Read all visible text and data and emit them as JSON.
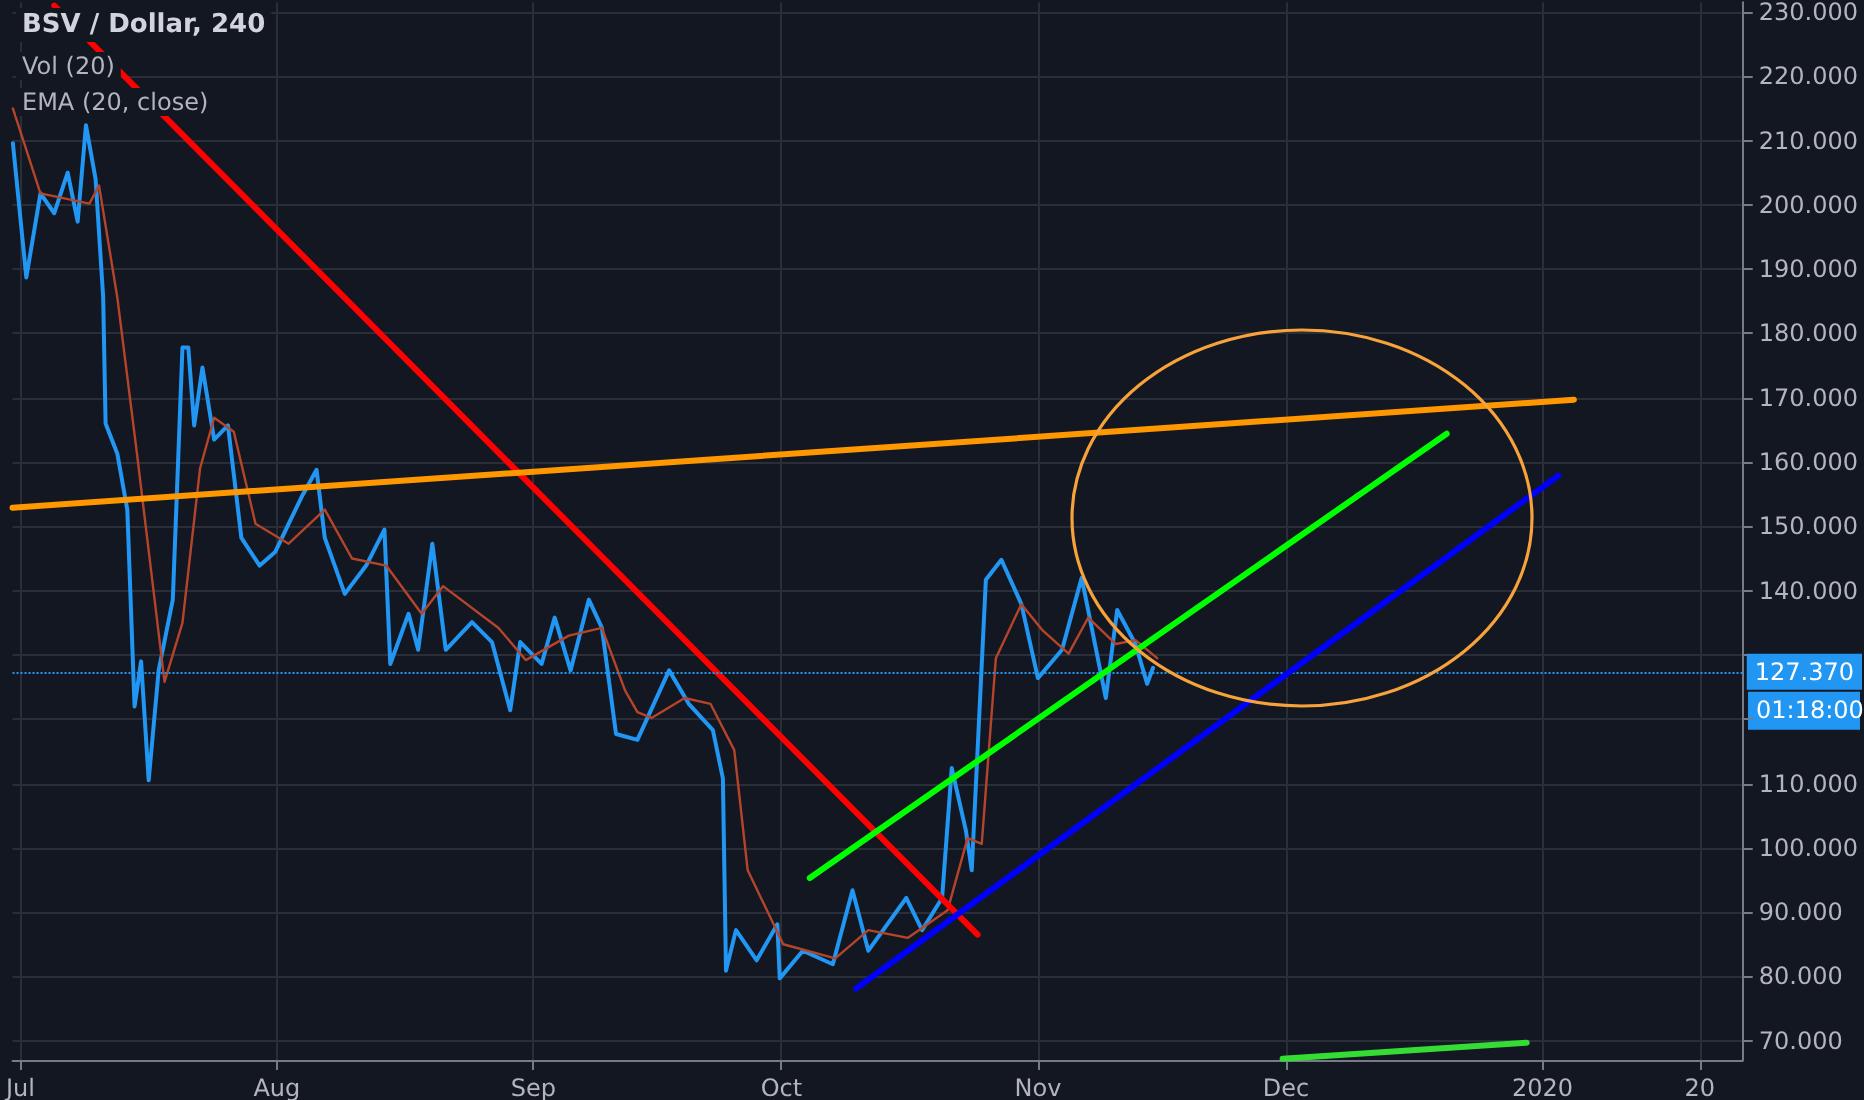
{
  "chart_data": {
    "type": "line",
    "title": "BSV / Dollar, 240",
    "annotations": [
      "Vol (20)",
      "EMA (20, close)",
      "01:18:00"
    ],
    "xlim": [
      "2019-06-30T01:00",
      "2020-01-25T05:00"
    ],
    "xticks": [
      {
        "value": "2019-07-01",
        "label": "Jul"
      },
      {
        "value": "2019-08-01",
        "label": "Aug"
      },
      {
        "value": "2019-09-01",
        "label": "Sep"
      },
      {
        "value": "2019-10-01",
        "label": "Oct"
      },
      {
        "value": "2019-11-01",
        "label": "Nov"
      },
      {
        "value": "2019-12-01",
        "label": "Dec"
      },
      {
        "value": "2020-01-01",
        "label": "2020"
      },
      {
        "value": "2020-01-20",
        "label": "20"
      }
    ],
    "ylim": [
      67,
      231.5
    ],
    "yticks": [
      {
        "value": 70,
        "label": "70.000"
      },
      {
        "value": 80,
        "label": "80.000"
      },
      {
        "value": 90,
        "label": "90.000"
      },
      {
        "value": 100,
        "label": "100.000"
      },
      {
        "value": 110,
        "label": "110.000"
      },
      {
        "value": 120,
        "label": null
      },
      {
        "value": 130,
        "label": null
      },
      {
        "value": 140,
        "label": "140.000"
      },
      {
        "value": 150,
        "label": "150.000"
      },
      {
        "value": 160,
        "label": "160.000"
      },
      {
        "value": 170,
        "label": "170.000"
      },
      {
        "value": 180,
        "label": "180.000"
      },
      {
        "value": 190,
        "label": "190.000"
      },
      {
        "value": 200,
        "label": "200.000"
      },
      {
        "value": 210,
        "label": "210.000"
      },
      {
        "value": 220,
        "label": "220.000"
      },
      {
        "value": 230,
        "label": "230.000"
      }
    ],
    "grid": true,
    "marker": "none",
    "ref_lines": [
      {
        "axis": "y",
        "value": 127.37,
        "label": "127.370",
        "color": "#2196f3",
        "line_style": "dotted"
      }
    ],
    "series": [
      {
        "color": "#2196f3",
        "x": [
          "2019-06-30T02:00",
          "2019-07-01T17:00",
          "2019-07-03T10:00",
          "2019-07-05T02:00",
          "2019-07-06T17:00",
          "2019-07-07T22:00",
          "2019-07-08T22:00",
          "2019-07-10T02:00",
          "2019-07-11T00:00",
          "2019-07-11T07:00",
          "2019-07-12T17:00",
          "2019-07-13T22:00",
          "2019-07-14T19:00",
          "2019-07-15T14:00",
          "2019-07-16T12:00",
          "2019-07-17T17:00",
          "2019-07-19T10:00",
          "2019-07-20T14:00",
          "2019-07-21T07:00",
          "2019-07-22T00:00",
          "2019-07-23T00:00",
          "2019-07-24T10:00",
          "2019-07-26T02:00",
          "2019-07-27T17:00",
          "2019-07-29T22:00",
          "2019-07-31T19:00",
          "2019-08-02T10:00",
          "2019-08-04T02:00",
          "2019-08-05T19:00",
          "2019-08-06T19:00",
          "2019-08-09T05:00",
          "2019-08-11T19:00",
          "2019-08-14T00:00",
          "2019-08-14T17:00",
          "2019-08-16T22:00",
          "2019-08-18T02:00",
          "2019-08-19T19:00",
          "2019-08-21T10:00",
          "2019-08-24T14:00",
          "2019-08-27T00:00",
          "2019-08-29T05:00",
          "2019-08-30T10:00",
          "2019-09-02T00:00",
          "2019-09-03T14:00",
          "2019-09-05T12:00",
          "2019-09-07T17:00",
          "2019-09-09T07:00",
          "2019-09-11T00:00",
          "2019-09-13T14:00",
          "2019-09-17T10:00",
          "2019-09-19T19:00",
          "2019-09-22T17:00",
          "2019-09-23T22:00",
          "2019-09-24T07:00",
          "2019-09-25T12:00",
          "2019-09-28T00:00",
          "2019-09-30T12:00",
          "2019-09-30T19:00",
          "2019-10-03T14:00",
          "2019-10-07T05:00",
          "2019-10-09T14:00",
          "2019-10-11T12:00",
          "2019-10-16T02:00",
          "2019-10-18T00:00",
          "2019-10-20T10:00",
          "2019-10-21T14:00",
          "2019-10-23T07:00",
          "2019-10-24T00:00",
          "2019-10-25T17:00",
          "2019-10-27T14:00",
          "2019-10-30T00:00",
          "2019-11-01T00:00",
          "2019-11-03T22:00",
          "2019-11-06T07:00",
          "2019-11-09T05:00",
          "2019-11-10T14:00",
          "2019-11-12T19:00",
          "2019-11-14T05:00",
          "2019-11-14T22:00"
        ],
        "values": [
          209.6,
          188.7,
          201.8,
          198.7,
          205,
          197.4,
          212.4,
          204,
          185.6,
          166,
          161.3,
          152.6,
          122,
          129,
          110.5,
          127.6,
          138.6,
          177.8,
          177.8,
          165.7,
          174.7,
          163.5,
          165.7,
          148.2,
          143.9,
          146,
          150.4,
          154.8,
          158.8,
          148.2,
          139.5,
          143.9,
          149.5,
          128.6,
          136.4,
          130.8,
          147.3,
          130.8,
          135.1,
          132,
          121.4,
          132,
          128.6,
          135.8,
          127.6,
          138.6,
          134.2,
          117.7,
          116.8,
          127.6,
          122.4,
          118.3,
          110.8,
          80.9,
          87.2,
          82.5,
          88.1,
          79.7,
          84,
          81.9,
          93.4,
          84,
          92.2,
          87.2,
          92.2,
          112.4,
          102.7,
          96.5,
          141.7,
          144.8,
          137.9,
          126.4,
          130.8,
          142,
          123.3,
          137,
          131.7,
          125.5,
          128
        ]
      },
      {
        "color": "#b5452a",
        "x": [
          "2019-06-30T02:00",
          "2019-07-03T10:00",
          "2019-07-09T08:00",
          "2019-07-10T12:00",
          "2019-07-12T17:00",
          "2019-07-15T02:00",
          "2019-07-18T10:00",
          "2019-07-20T14:00",
          "2019-07-22T17:00",
          "2019-07-24T10:00",
          "2019-07-26T19:00",
          "2019-07-29T10:00",
          "2019-08-02T10:00",
          "2019-08-06T19:00",
          "2019-08-10T02:00",
          "2019-08-14T05:00",
          "2019-08-18T12:00",
          "2019-08-21T02:00",
          "2019-08-27T19:00",
          "2019-08-31T02:00",
          "2019-09-05T07:00",
          "2019-09-09T07:00",
          "2019-09-12T02:00",
          "2019-09-13T14:00",
          "2019-09-15T07:00",
          "2019-09-19T07:00",
          "2019-09-22T10:00",
          "2019-09-25T07:00",
          "2019-09-26T22:00",
          "2019-10-01T05:00",
          "2019-10-07T12:00",
          "2019-10-11T12:00",
          "2019-10-16T07:00",
          "2019-10-21T02:00",
          "2019-10-23T12:00",
          "2019-10-25T05:00",
          "2019-10-26T22:00",
          "2019-10-30T00:00",
          "2019-11-01T12:00",
          "2019-11-04T17:00",
          "2019-11-07T02:00",
          "2019-11-10T10:00",
          "2019-11-12T19:00",
          "2019-11-15T10:00"
        ],
        "values": [
          215,
          201.8,
          200.2,
          203,
          185.6,
          161.3,
          125.8,
          135,
          159,
          166.9,
          164.7,
          150.4,
          147.3,
          152.6,
          145,
          143.9,
          136.4,
          140.7,
          134.2,
          129.2,
          133,
          134.2,
          124.5,
          121.1,
          120.2,
          123.3,
          122.4,
          115.2,
          96.5,
          85,
          82.8,
          87.2,
          86,
          90.3,
          101.5,
          100.6,
          129.5,
          137.9,
          133.9,
          130.2,
          135.8,
          131.7,
          132.3,
          129.5
        ]
      },
      {
        "color": "#ff0000",
        "x": [
          "2019-07-05T02:00",
          "2019-10-24T17:00"
        ],
        "values": [
          231,
          86.5
        ]
      },
      {
        "color": "#ff9800",
        "x": [
          "2019-06-30T01:00",
          "2020-01-04T19:00"
        ],
        "values": [
          152.9,
          169.7
        ]
      },
      {
        "color": "#00ff00",
        "x": [
          "2019-10-04T10:00",
          "2019-12-20T10:00"
        ],
        "values": [
          95.3,
          164.4
        ]
      },
      {
        "color": "#0000ff",
        "x": [
          "2019-10-10T00:00",
          "2020-01-02T22:00"
        ],
        "values": [
          78.1,
          157.9
        ]
      },
      {
        "color": "#33dd33",
        "x": [
          "2019-11-30T14:00",
          "2019-12-30T02:00"
        ],
        "values": [
          67.2,
          69.7
        ]
      }
    ]
  }
}
